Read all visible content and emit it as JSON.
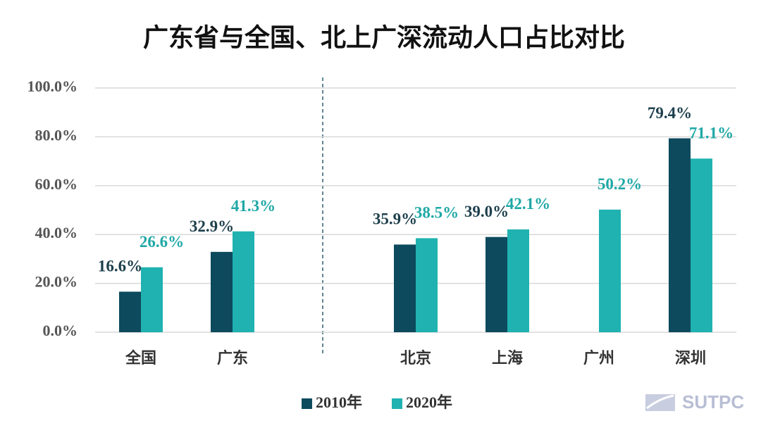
{
  "chart_data": {
    "type": "bar",
    "title": "广东省与全国、北上广深流动人口占比对比",
    "categories": [
      "全国",
      "广东",
      null,
      "北京",
      "上海",
      "广州",
      "深圳"
    ],
    "series": [
      {
        "name": "2010年",
        "color": "#0d4a5e",
        "values": [
          16.6,
          32.9,
          null,
          35.9,
          39.0,
          null,
          79.4
        ],
        "value_labels": [
          "16.6%",
          "32.9%",
          null,
          "35.9%",
          "39.0%",
          null,
          "79.4%"
        ]
      },
      {
        "name": "2020年",
        "color": "#1fb2b0",
        "values": [
          26.6,
          41.3,
          null,
          38.5,
          42.1,
          50.2,
          71.1
        ],
        "value_labels": [
          "26.6%",
          "41.3%",
          null,
          "38.5%",
          "42.1%",
          "50.2%",
          "71.1%"
        ]
      }
    ],
    "ylim": [
      0,
      100
    ],
    "yticks": [
      {
        "value": 0,
        "label": "0.0%"
      },
      {
        "value": 20,
        "label": "20.0%"
      },
      {
        "value": 40,
        "label": "40.0%"
      },
      {
        "value": 60,
        "label": "60.0%"
      },
      {
        "value": 80,
        "label": "80.0%"
      },
      {
        "value": 100,
        "label": "100.0%"
      }
    ],
    "grid": true,
    "legend": "bottom",
    "watermark": "SUTPC"
  }
}
